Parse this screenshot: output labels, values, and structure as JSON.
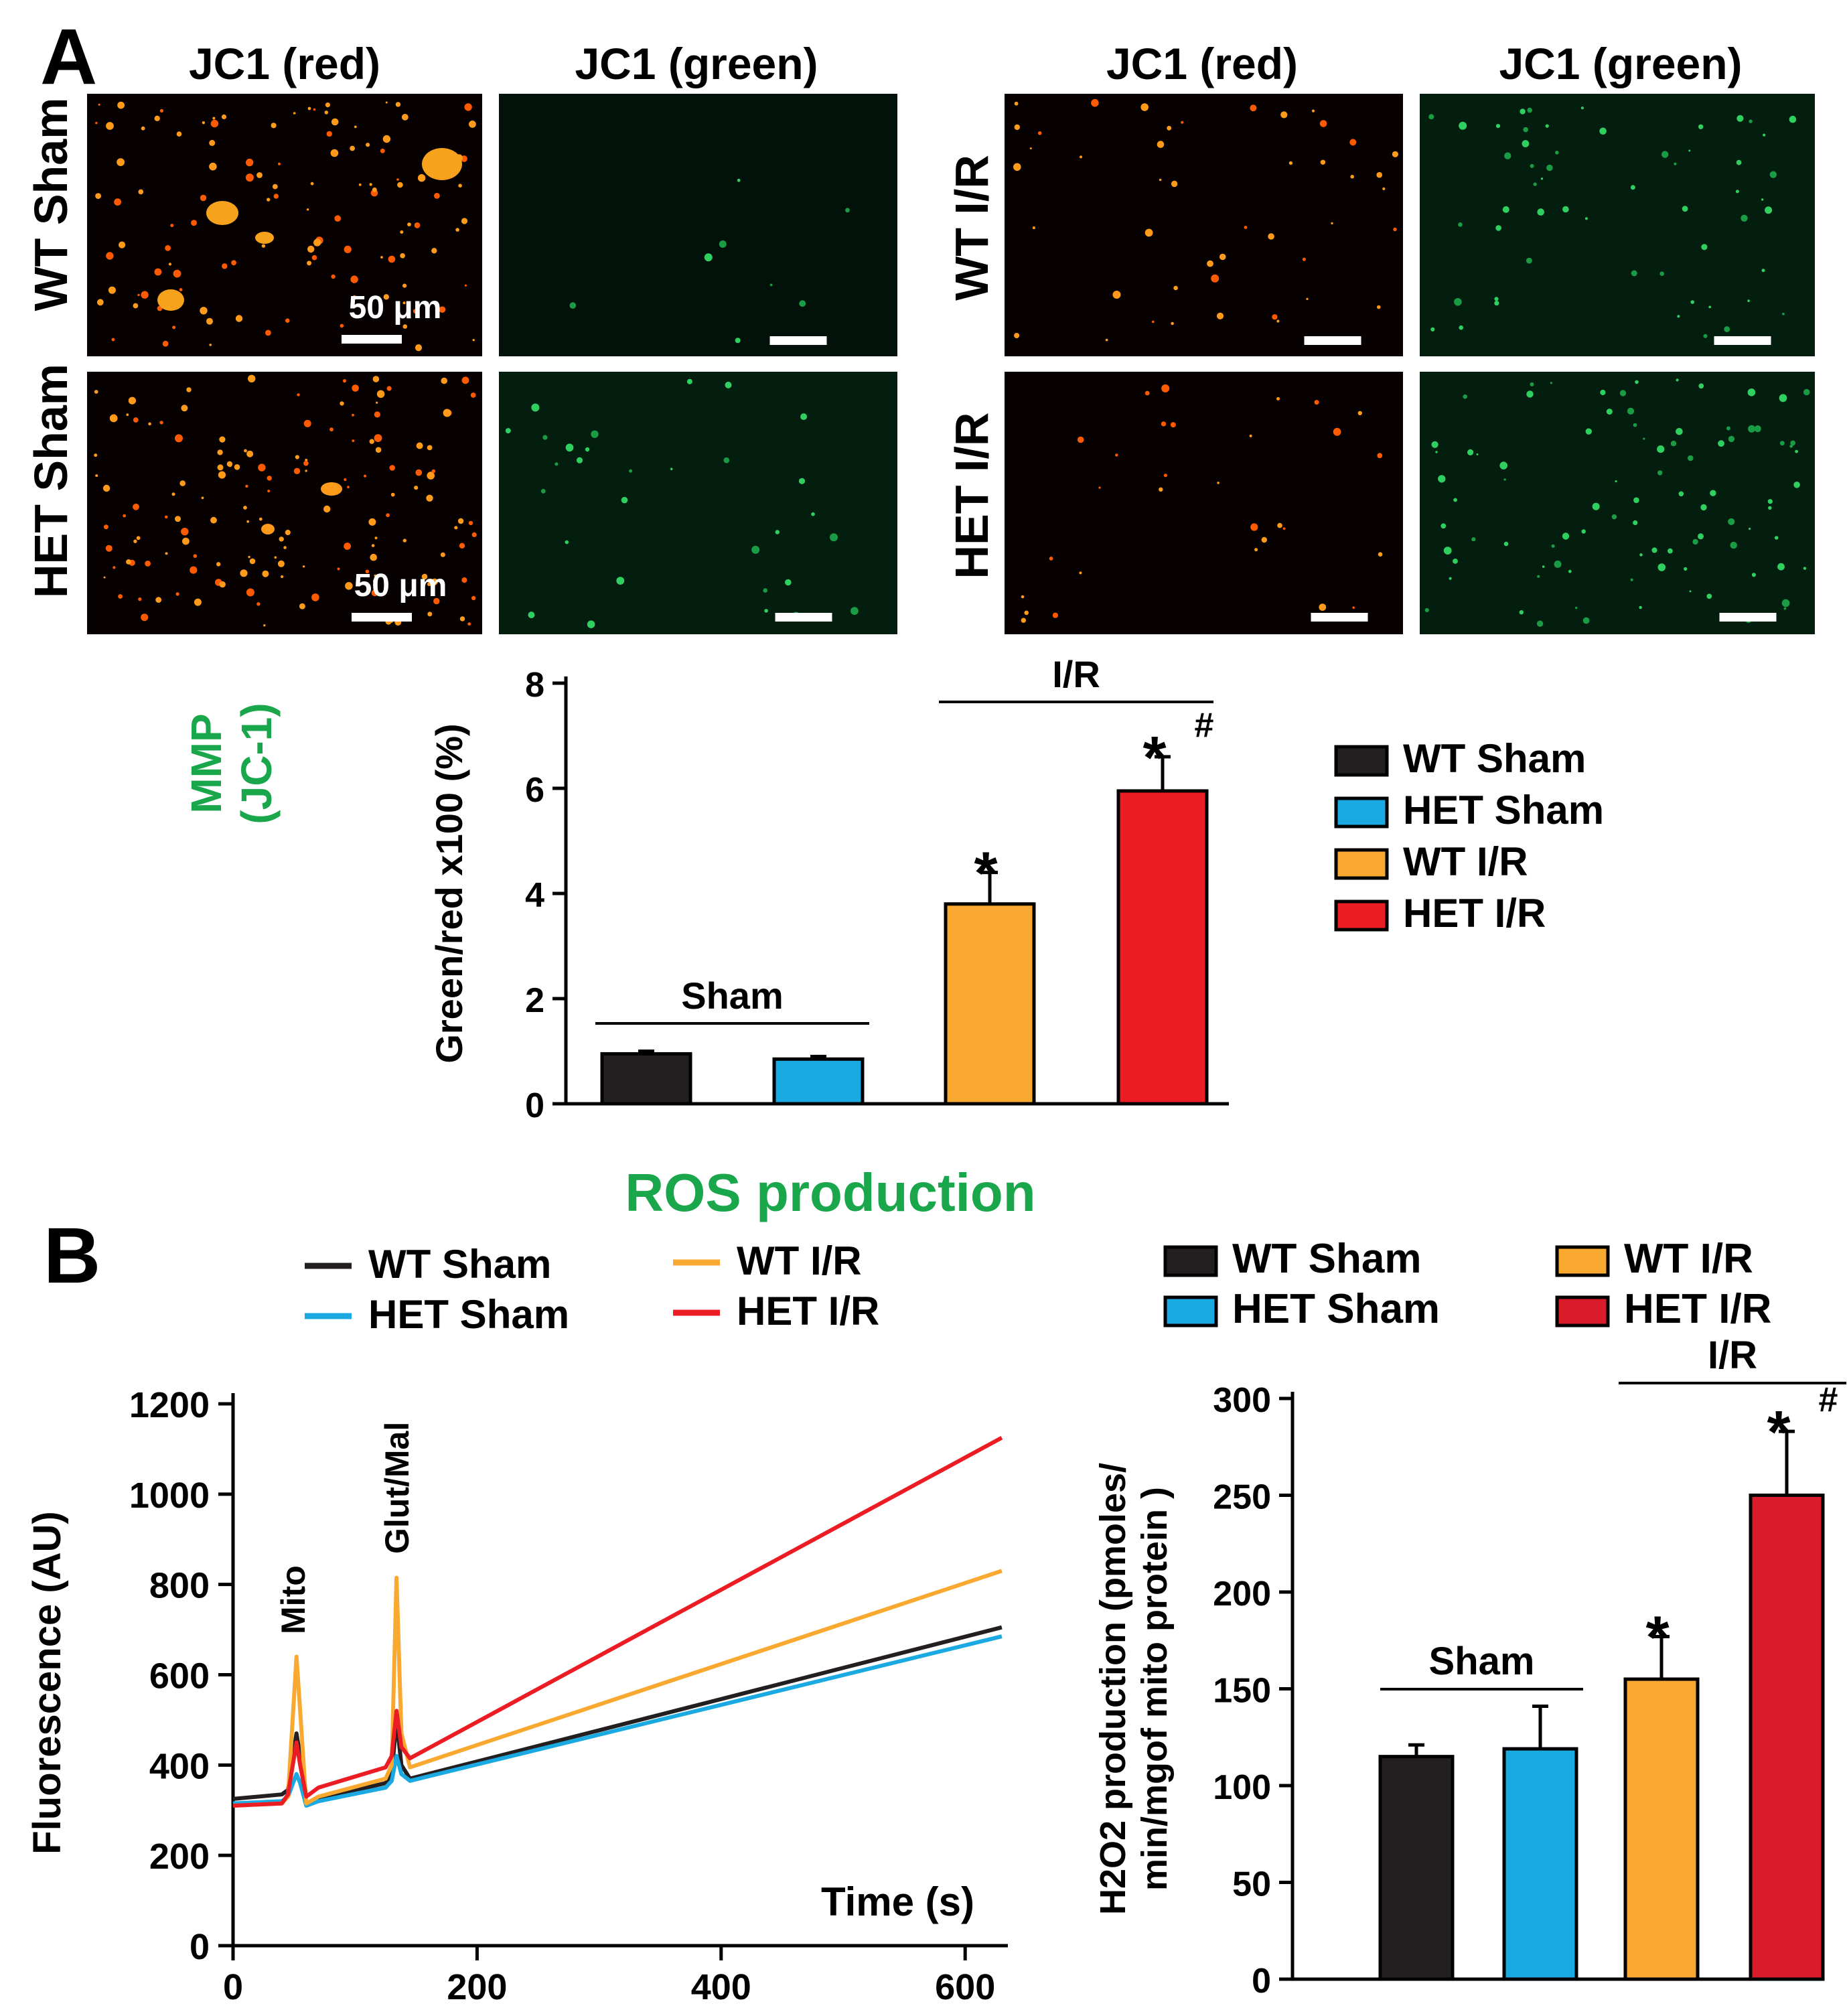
{
  "panels": {
    "A": {
      "label": "A",
      "micro": {
        "col_headers": [
          "JC1 (red)",
          "JC1 (green)",
          "JC1 (red)",
          "JC1 (green)"
        ],
        "row_labels_left": [
          "WT Sham",
          "HET Sham"
        ],
        "row_labels_right": [
          "WT I/R",
          "HET I/R"
        ],
        "scalebar_labels": [
          "50 μm",
          "50 μm"
        ]
      },
      "side_title": [
        "MMP",
        "(JC-1)"
      ],
      "colors": {
        "side_title": "#1aa64a"
      }
    },
    "B": {
      "label": "B",
      "title": "ROS production",
      "colors": {
        "title": "#1aa64a"
      }
    }
  },
  "chart_data": [
    {
      "id": "mmp-bar",
      "type": "bar",
      "categories": [
        "WT Sham",
        "HET Sham",
        "WT I/R",
        "HET I/R"
      ],
      "values": [
        0.95,
        0.85,
        3.8,
        5.95
      ],
      "errors": [
        0.05,
        0.05,
        0.6,
        0.65
      ],
      "colors": [
        "#231f20",
        "#1ba9e1",
        "#f9a930",
        "#ec1c24"
      ],
      "ylabel": "Green/red x100  (%)",
      "ylim": [
        0,
        8
      ],
      "yticks": [
        "0",
        "2",
        "4",
        "6",
        "8"
      ],
      "legend": [
        "WT Sham",
        "HET Sham",
        "WT I/R",
        "HET I/R"
      ],
      "legend_position": "right",
      "group_labels": [
        "Sham",
        "I/R"
      ],
      "annotations": [
        "*",
        "*",
        "#"
      ]
    },
    {
      "id": "ros-line",
      "type": "line",
      "xlabel": "Time (s)",
      "ylabel": "Fluorescence  (AU)",
      "xlim": [
        0,
        640
      ],
      "ylim": [
        0,
        1250
      ],
      "xticks": [
        "0",
        "200",
        "400",
        "600"
      ],
      "yticks": [
        "0",
        "200",
        "400",
        "600",
        "800",
        "1000",
        "1200"
      ],
      "legend_position": "top",
      "annotations": [
        "Mito",
        "Glut/Mal"
      ],
      "series": [
        {
          "name": "WT Sham",
          "color": "#231f20",
          "x": [
            0,
            40,
            45,
            52,
            55,
            60,
            70,
            125,
            130,
            134,
            138,
            145,
            630
          ],
          "y": [
            325,
            335,
            345,
            470,
            420,
            315,
            325,
            360,
            380,
            500,
            400,
            370,
            705
          ]
        },
        {
          "name": "HET Sham",
          "color": "#1ba9e1",
          "x": [
            0,
            40,
            45,
            52,
            55,
            60,
            70,
            125,
            130,
            134,
            138,
            145,
            630
          ],
          "y": [
            315,
            320,
            330,
            380,
            360,
            310,
            320,
            350,
            365,
            420,
            380,
            365,
            685
          ]
        },
        {
          "name": "WT I/R",
          "color": "#f9a930",
          "x": [
            0,
            40,
            45,
            52,
            55,
            60,
            70,
            125,
            130,
            134,
            138,
            145,
            630
          ],
          "y": [
            310,
            315,
            330,
            640,
            520,
            315,
            330,
            370,
            400,
            815,
            470,
            395,
            830
          ]
        },
        {
          "name": "HET I/R",
          "color": "#ec1c24",
          "x": [
            0,
            40,
            45,
            52,
            55,
            60,
            70,
            125,
            130,
            134,
            138,
            145,
            630
          ],
          "y": [
            310,
            315,
            335,
            450,
            400,
            330,
            350,
            395,
            420,
            520,
            440,
            415,
            1125
          ]
        }
      ]
    },
    {
      "id": "h2o2-bar",
      "type": "bar",
      "categories": [
        "WT Sham",
        "HET Sham",
        "WT I/R",
        "HET I/R"
      ],
      "values": [
        115,
        119,
        155,
        250
      ],
      "errors": [
        6,
        22,
        22,
        33
      ],
      "colors": [
        "#231f20",
        "#1ba9e1",
        "#f9a930",
        "#d91b2a"
      ],
      "ylabel": [
        "H2O2 production (pmoles/",
        "min/mgof mito protein )"
      ],
      "ylim": [
        0,
        300
      ],
      "yticks": [
        "0",
        "50",
        "100",
        "150",
        "200",
        "250",
        "300"
      ],
      "legend": [
        "WT Sham",
        "HET Sham",
        "WT I/R",
        "HET I/R"
      ],
      "legend_position": "top",
      "group_labels": [
        "Sham",
        "I/R"
      ],
      "annotations": [
        "*",
        "*",
        "#"
      ]
    }
  ]
}
